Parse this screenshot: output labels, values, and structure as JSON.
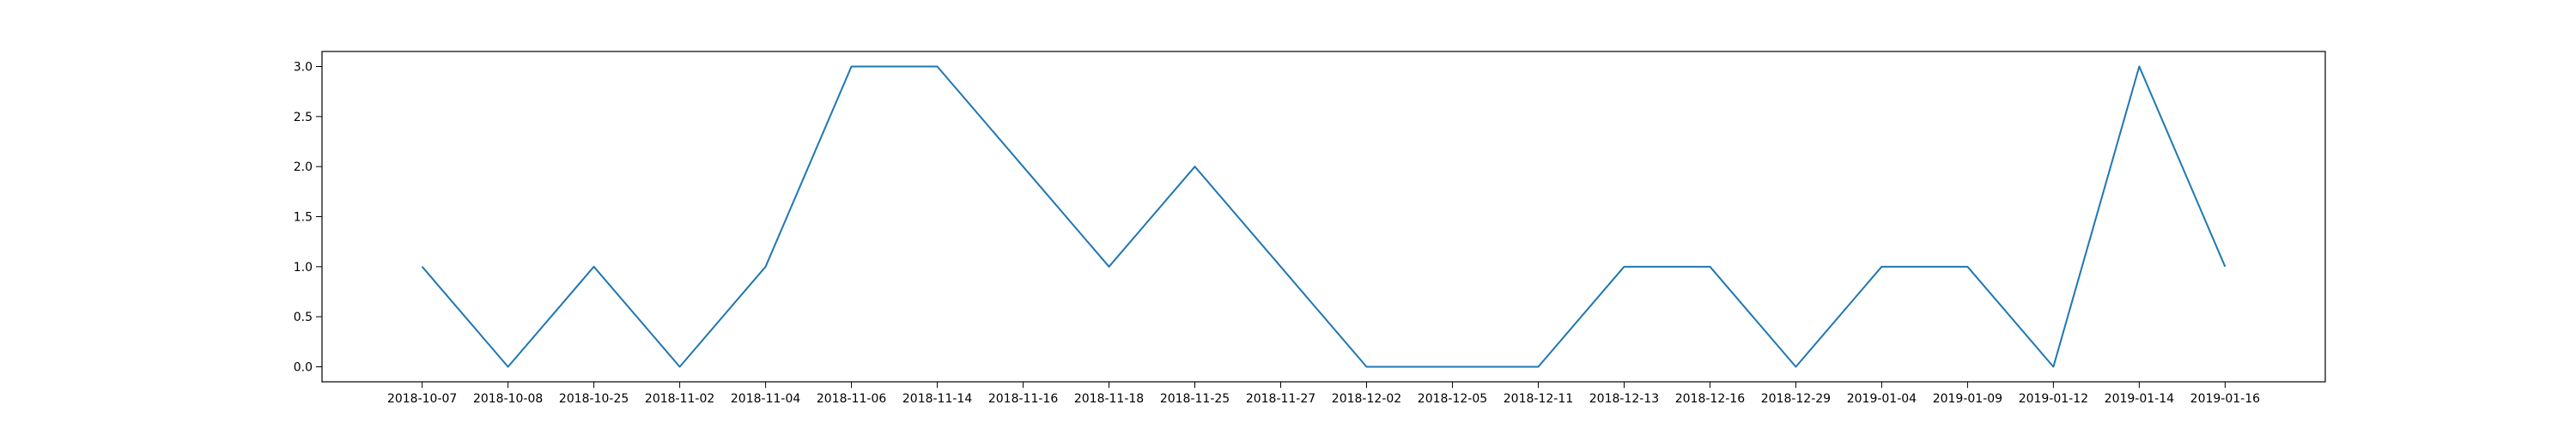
{
  "chart_data": {
    "type": "line",
    "title": "",
    "xlabel": "",
    "ylabel": "",
    "grid": false,
    "categories": [
      "2018-10-07",
      "2018-10-08",
      "2018-10-25",
      "2018-11-02",
      "2018-11-04",
      "2018-11-06",
      "2018-11-14",
      "2018-11-16",
      "2018-11-18",
      "2018-11-25",
      "2018-11-27",
      "2018-12-02",
      "2018-12-05",
      "2018-12-11",
      "2018-12-13",
      "2018-12-16",
      "2018-12-29",
      "2019-01-04",
      "2019-01-09",
      "2019-01-12",
      "2019-01-14",
      "2019-01-16"
    ],
    "series": [
      {
        "color": "#1f77b4",
        "values": [
          1,
          0,
          1,
          0,
          1,
          3,
          3,
          2,
          1,
          2,
          1,
          0,
          0,
          0,
          1,
          1,
          0,
          1,
          1,
          0,
          3,
          1
        ]
      }
    ],
    "ylim": [
      -0.15,
      3.15
    ],
    "yticks": [
      0.0,
      0.5,
      1.0,
      1.5,
      2.0,
      2.5,
      3.0
    ],
    "ytick_labels": [
      "0.0",
      "0.5",
      "1.0",
      "1.5",
      "2.0",
      "2.5",
      "3.0"
    ]
  }
}
